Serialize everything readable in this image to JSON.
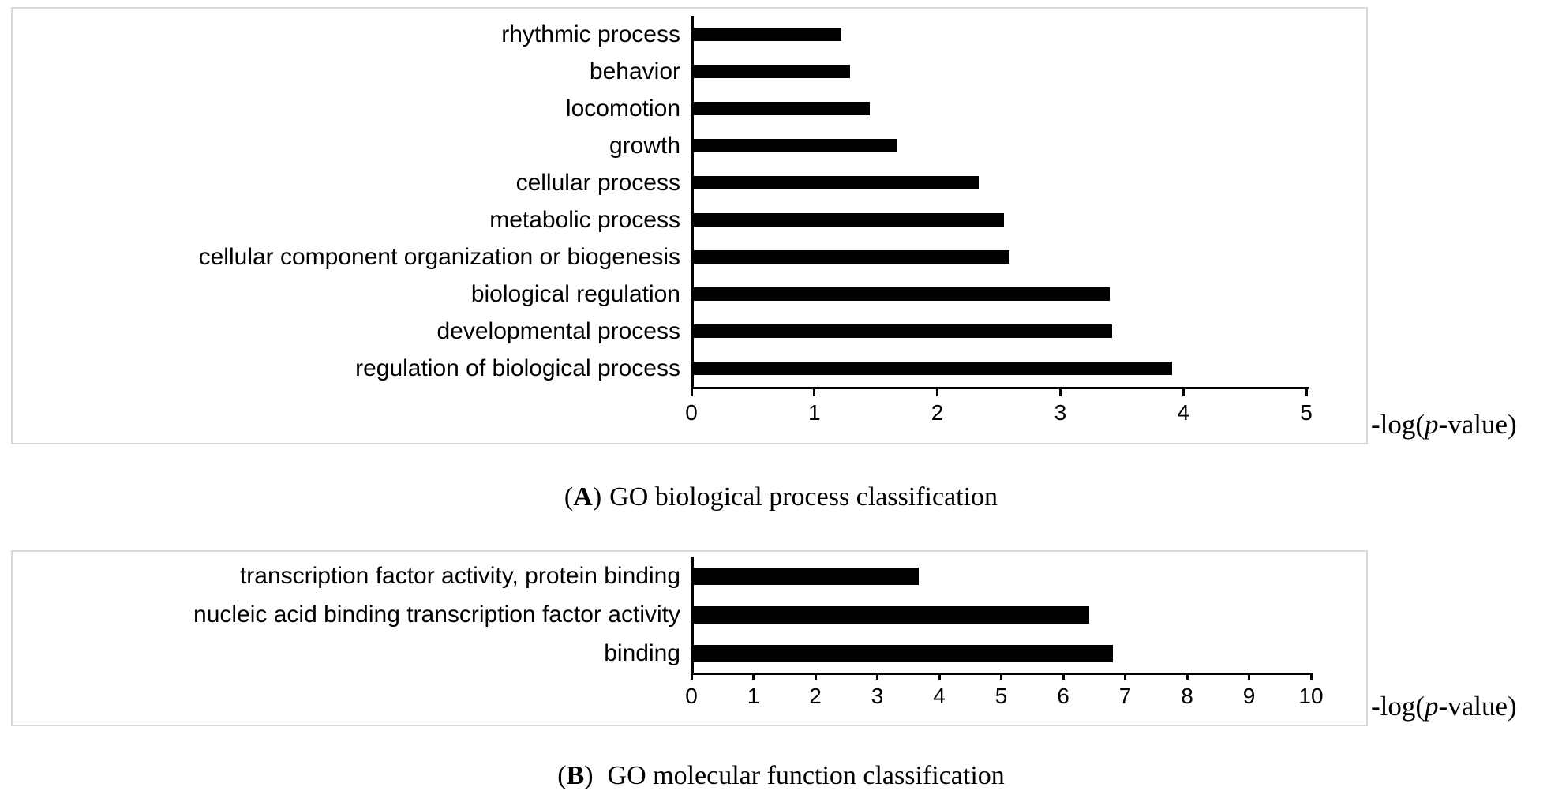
{
  "figure": {
    "panels": [
      {
        "caption": {
          "open": "(",
          "letter": "A",
          "close": ")",
          "text": "GO biological process classification"
        },
        "x_axis_label": {
          "pre": "-log(",
          "italic": "p",
          "post": "-value)"
        }
      },
      {
        "caption": {
          "open": "(",
          "letter": "B",
          "close": ")",
          "text": "GO molecular function classification"
        },
        "x_axis_label": {
          "pre": "-log(",
          "italic": "p",
          "post": "-value)"
        }
      }
    ]
  },
  "chart_data": [
    {
      "type": "bar",
      "orientation": "horizontal",
      "title": "(A) GO biological process classification",
      "categories": [
        "rhythmic process",
        "behavior",
        "locomotion",
        "growth",
        "cellular process",
        "metabolic process",
        "cellular component organization or biogenesis",
        "biological regulation",
        "developmental process",
        "regulation of biological process"
      ],
      "values": [
        1.2,
        1.27,
        1.43,
        1.65,
        2.32,
        2.52,
        2.57,
        3.38,
        3.4,
        3.89
      ],
      "xlabel": "-log(p-value)",
      "ylabel": "",
      "xlim": [
        0,
        5
      ],
      "xticks": [
        0,
        1,
        2,
        3,
        4,
        5
      ],
      "bar_color": "#000000",
      "frame_color": "#d9d9d9",
      "grid": false,
      "legend": "none"
    },
    {
      "type": "bar",
      "orientation": "horizontal",
      "title": "(B) GO molecular function classification",
      "categories": [
        "transcription factor activity, protein binding",
        "nucleic acid binding transcription factor activity",
        "binding"
      ],
      "values": [
        3.63,
        6.38,
        6.77
      ],
      "xlabel": "-log(p-value)",
      "ylabel": "",
      "xlim": [
        0,
        10
      ],
      "xticks": [
        0,
        1,
        2,
        3,
        4,
        5,
        6,
        7,
        8,
        9,
        10
      ],
      "bar_color": "#000000",
      "frame_color": "#d9d9d9",
      "grid": false,
      "legend": "none"
    }
  ]
}
